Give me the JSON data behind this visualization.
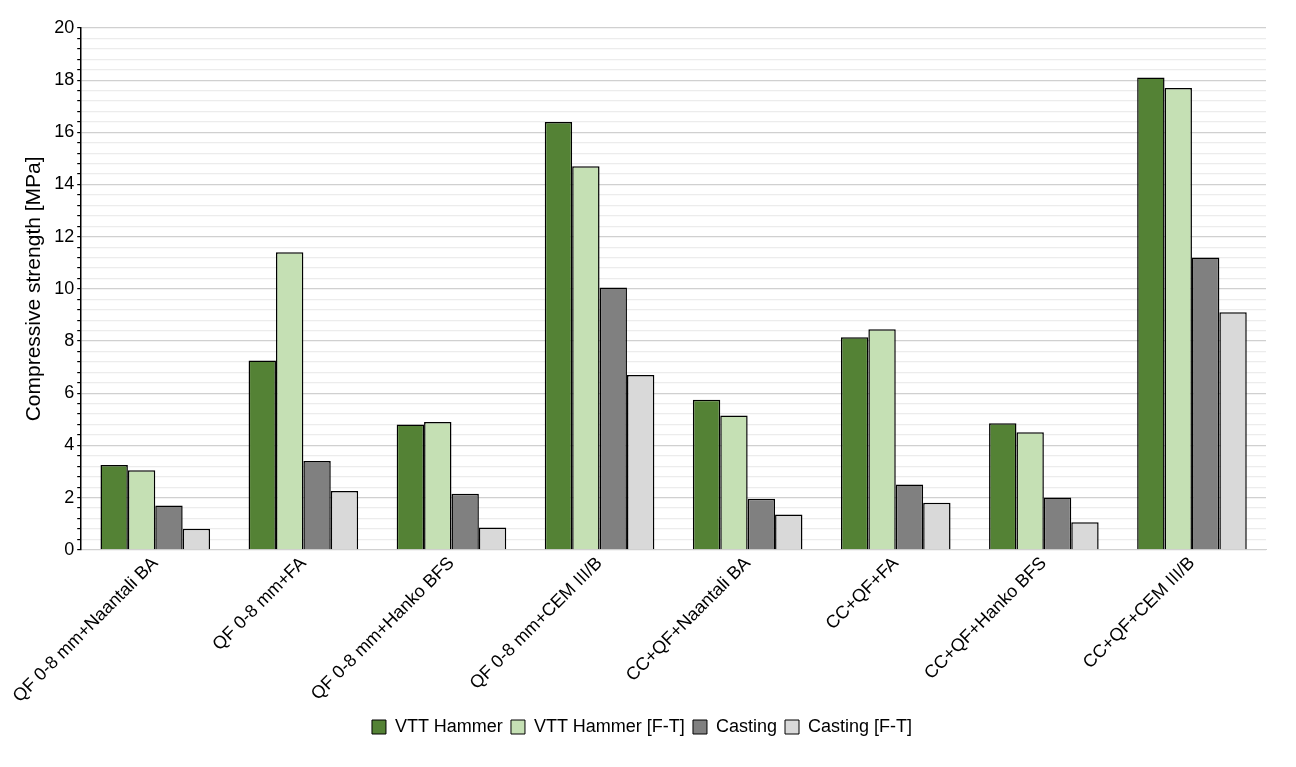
{
  "chart_data": {
    "type": "bar",
    "ylabel": "Compressive strength [MPa]",
    "categories": [
      "QF 0-8 mm+Naantali BA",
      "QF 0-8 mm+FA",
      "QF 0-8 mm+Hanko BFS",
      "QF 0-8 mm+CEM III/B",
      "CC+QF+Naantali BA",
      "CC+QF+FA",
      "CC+QF+Hanko BFS",
      "CC+QF+CEM III/B"
    ],
    "series": [
      {
        "name": "VTT Hammer",
        "color": "#548235",
        "values": [
          3.25,
          7.25,
          4.8,
          16.4,
          5.75,
          8.15,
          4.85,
          18.1
        ]
      },
      {
        "name": "VTT Hammer [F-T]",
        "color": "#c5e0b4",
        "values": [
          3.05,
          11.4,
          4.9,
          14.7,
          5.15,
          8.45,
          4.5,
          17.7
        ]
      },
      {
        "name": "Casting",
        "color": "#808080",
        "values": [
          1.7,
          3.4,
          2.15,
          10.05,
          1.95,
          2.5,
          2.0,
          11.2
        ]
      },
      {
        "name": "Casting [F-T]",
        "color": "#d9d9d9",
        "values": [
          0.8,
          2.25,
          0.85,
          6.7,
          1.35,
          1.8,
          1.05,
          9.1
        ]
      }
    ],
    "ylim": [
      0,
      20
    ],
    "yticks": [
      0,
      {
        "value": 0.4,
        "label": null
      },
      {
        "value": 0.8,
        "label": null
      },
      {
        "value": 1.2,
        "label": null
      },
      {
        "value": 1.6,
        "label": null
      },
      2,
      {
        "value": 2.4,
        "label": null
      },
      {
        "value": 2.8,
        "label": null
      },
      {
        "value": 3.2,
        "label": null
      },
      {
        "value": 3.6,
        "label": null
      },
      4,
      {
        "value": 4.4,
        "label": null
      },
      {
        "value": 4.8,
        "label": null
      },
      {
        "value": 5.2,
        "label": null
      },
      {
        "value": 5.6,
        "label": null
      },
      6,
      {
        "value": 6.4,
        "label": null
      },
      {
        "value": 6.8,
        "label": null
      },
      {
        "value": 7.2,
        "label": null
      },
      {
        "value": 7.6,
        "label": null
      },
      8,
      {
        "value": 8.4,
        "label": null
      },
      {
        "value": 8.8,
        "label": null
      },
      {
        "value": 9.2,
        "label": null
      },
      {
        "value": 9.6,
        "label": null
      },
      10,
      {
        "value": 10.4,
        "label": null
      },
      {
        "value": 10.8,
        "label": null
      },
      {
        "value": 11.2,
        "label": null
      },
      {
        "value": 11.6,
        "label": null
      },
      12,
      {
        "value": 12.4,
        "label": null
      },
      {
        "value": 12.8,
        "label": null
      },
      {
        "value": 13.2,
        "label": null
      },
      {
        "value": 13.6,
        "label": null
      },
      14,
      {
        "value": 14.4,
        "label": null
      },
      {
        "value": 14.8,
        "label": null
      },
      {
        "value": 15.2,
        "label": null
      },
      {
        "value": 15.6,
        "label": null
      },
      16,
      {
        "value": 16.4,
        "label": null
      },
      {
        "value": 16.8,
        "label": null
      },
      {
        "value": 17.2,
        "label": null
      },
      {
        "value": 17.6,
        "label": null
      },
      18,
      {
        "value": 18.4,
        "label": null
      },
      {
        "value": 18.8,
        "label": null
      },
      {
        "value": 19.2,
        "label": null
      },
      {
        "value": 19.6,
        "label": null
      },
      20
    ],
    "grid": "y",
    "legend": "bottom"
  }
}
